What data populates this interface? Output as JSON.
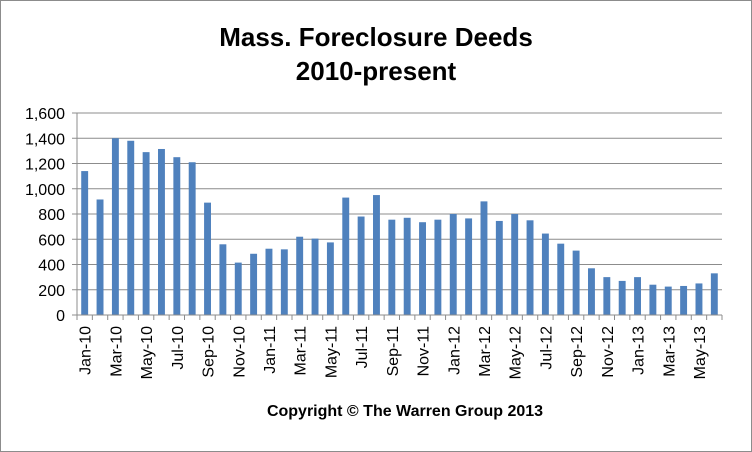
{
  "chart_data": {
    "type": "bar",
    "title": "Mass. Foreclosure Deeds",
    "subtitle": "2010-present",
    "footer": "Copyright © The Warren Group 2013",
    "ylim": [
      0,
      1600
    ],
    "yticks": [
      0,
      200,
      400,
      600,
      800,
      1000,
      1200,
      1400,
      1600
    ],
    "ytick_labels": [
      "0",
      "200",
      "400",
      "600",
      "800",
      "1,000",
      "1,200",
      "1,400",
      "1,600"
    ],
    "grid": true,
    "bar_color": "#4f81bd",
    "categories": [
      "Jan-10",
      "Feb-10",
      "Mar-10",
      "Apr-10",
      "May-10",
      "Jun-10",
      "Jul-10",
      "Aug-10",
      "Sep-10",
      "Oct-10",
      "Nov-10",
      "Dec-10",
      "Jan-11",
      "Feb-11",
      "Mar-11",
      "Apr-11",
      "May-11",
      "Jun-11",
      "Jul-11",
      "Aug-11",
      "Sep-11",
      "Oct-11",
      "Nov-11",
      "Dec-11",
      "Jan-12",
      "Feb-12",
      "Mar-12",
      "Apr-12",
      "May-12",
      "Jun-12",
      "Jul-12",
      "Aug-12",
      "Sep-12",
      "Oct-12",
      "Nov-12",
      "Dec-12",
      "Jan-13",
      "Feb-13",
      "Mar-13",
      "Apr-13",
      "May-13",
      "Jun-13"
    ],
    "tick_labels": [
      "Jan-10",
      "",
      "Mar-10",
      "",
      "May-10",
      "",
      "Jul-10",
      "",
      "Sep-10",
      "",
      "Nov-10",
      "",
      "Jan-11",
      "",
      "Mar-11",
      "",
      "May-11",
      "",
      "Jul-11",
      "",
      "Sep-11",
      "",
      "Nov-11",
      "",
      "Jan-12",
      "",
      "Mar-12",
      "",
      "May-12",
      "",
      "Jul-12",
      "",
      "Sep-12",
      "",
      "Nov-12",
      "",
      "Jan-13",
      "",
      "Mar-13",
      "",
      "May-13",
      ""
    ],
    "values": [
      1140,
      915,
      1400,
      1380,
      1290,
      1315,
      1250,
      1210,
      890,
      560,
      415,
      485,
      525,
      520,
      620,
      605,
      575,
      930,
      780,
      950,
      755,
      770,
      735,
      755,
      800,
      765,
      900,
      745,
      800,
      750,
      645,
      565,
      510,
      370,
      300,
      270,
      300,
      240,
      225,
      230,
      250,
      330
    ]
  }
}
